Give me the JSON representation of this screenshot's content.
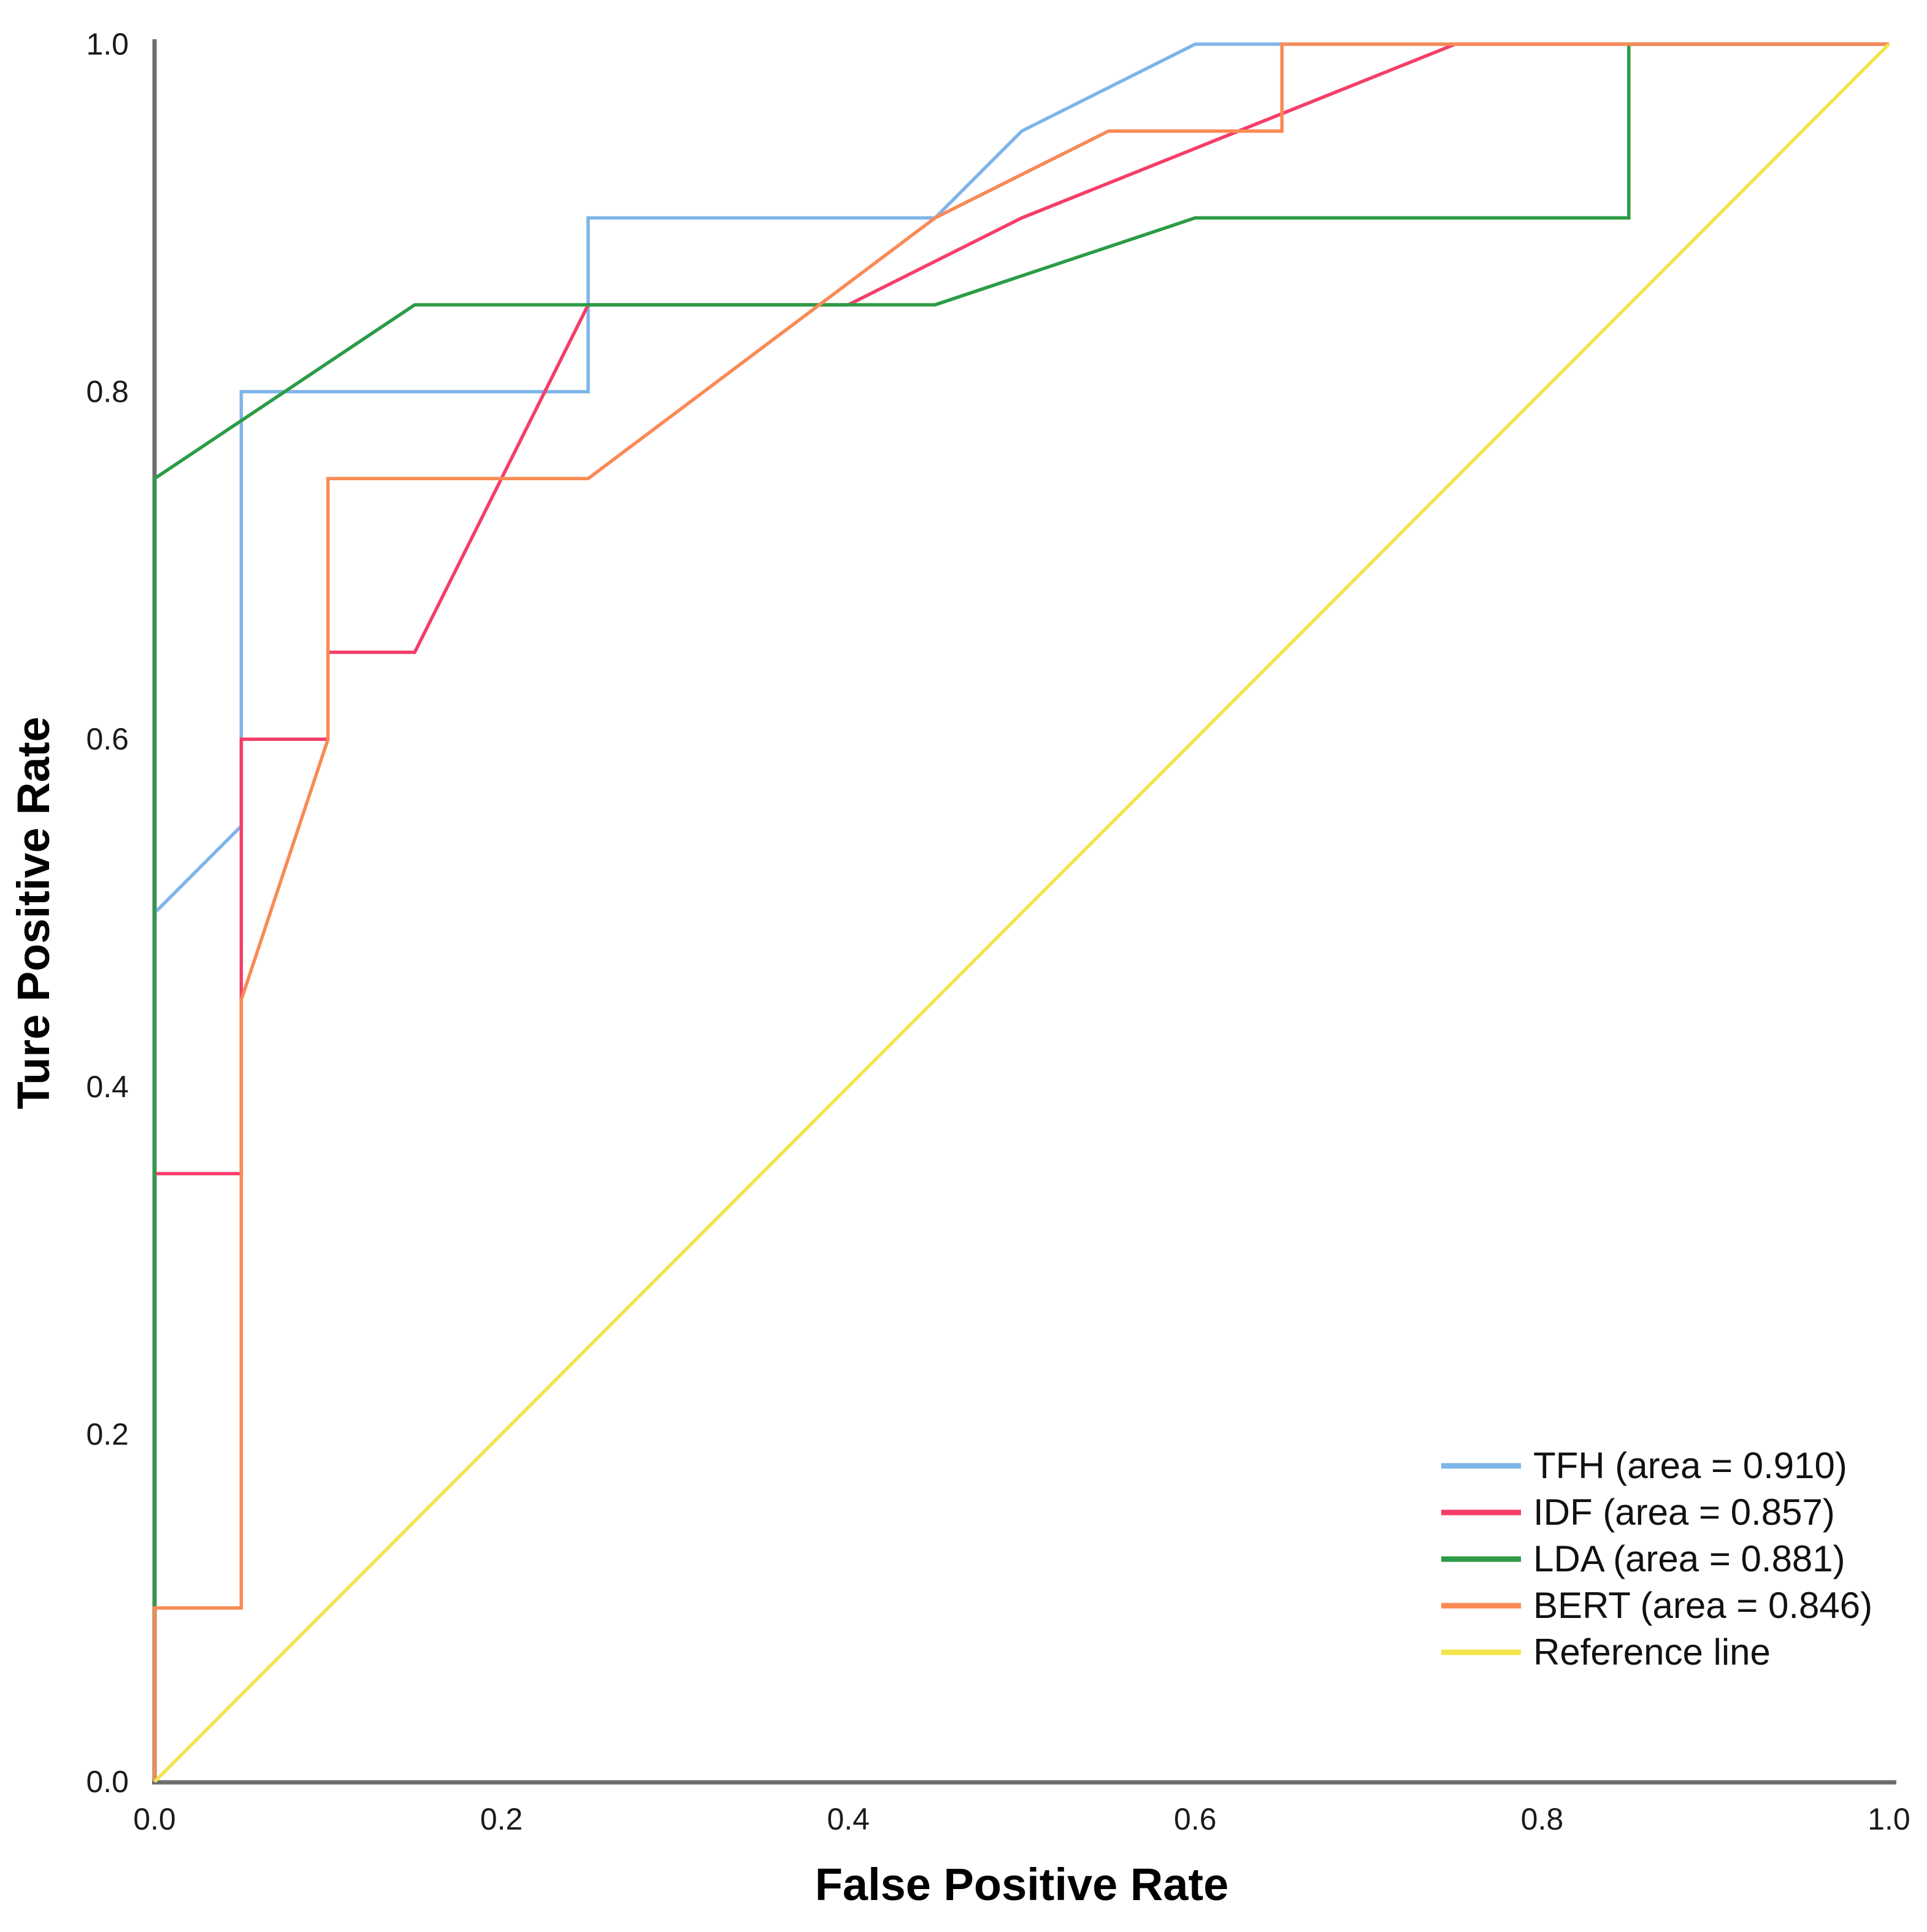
{
  "figure": {
    "background": "#ffffff",
    "axis_color": "#6e6e6e"
  },
  "axes": {
    "x": {
      "label": "False Positive Rate",
      "ticks": [
        "0.0",
        "0.2",
        "0.4",
        "0.6",
        "0.8",
        "1.0"
      ],
      "range": [
        0,
        1
      ]
    },
    "y": {
      "label": "Ture Positive Rate",
      "ticks": [
        "0.0",
        "0.2",
        "0.4",
        "0.6",
        "0.8",
        "1.0"
      ],
      "range": [
        0,
        1
      ]
    }
  },
  "legend": {
    "position": "inside lower right",
    "items": [
      {
        "label": "TFH (area = 0.910)",
        "color": "#7FB5E8"
      },
      {
        "label": "IDF (area = 0.857)",
        "color": "#F43E68"
      },
      {
        "label": "LDA (area = 0.881)",
        "color": "#2D9B45"
      },
      {
        "label": "BERT (area = 0.846)",
        "color": "#FA8A55"
      },
      {
        "label": "Reference line",
        "color": "#F3E44C"
      }
    ]
  },
  "chart_data": {
    "type": "line",
    "title": "",
    "xlabel": "False Positive Rate",
    "ylabel": "Ture Positive Rate",
    "xlim": [
      0,
      1
    ],
    "ylim": [
      0,
      1
    ],
    "grid": false,
    "legend_position": "inside lower right",
    "series": [
      {
        "name": "TFH",
        "area": 0.91,
        "color": "#7FB5E8",
        "points": [
          [
            0,
            0
          ],
          [
            0,
            0.5
          ],
          [
            0.05,
            0.55
          ],
          [
            0.05,
            0.8
          ],
          [
            0.25,
            0.8
          ],
          [
            0.25,
            0.9
          ],
          [
            0.45,
            0.9
          ],
          [
            0.5,
            0.95
          ],
          [
            0.6,
            1.0
          ],
          [
            1.0,
            1.0
          ]
        ]
      },
      {
        "name": "IDF",
        "area": 0.857,
        "color": "#F43E68",
        "points": [
          [
            0,
            0
          ],
          [
            0,
            0.35
          ],
          [
            0.05,
            0.35
          ],
          [
            0.05,
            0.6
          ],
          [
            0.1,
            0.6
          ],
          [
            0.1,
            0.65
          ],
          [
            0.15,
            0.65
          ],
          [
            0.25,
            0.85
          ],
          [
            0.4,
            0.85
          ],
          [
            0.5,
            0.9
          ],
          [
            0.75,
            1.0
          ],
          [
            1.0,
            1.0
          ]
        ]
      },
      {
        "name": "LDA",
        "area": 0.881,
        "color": "#2D9B45",
        "points": [
          [
            0,
            0
          ],
          [
            0,
            0.75
          ],
          [
            0.15,
            0.85
          ],
          [
            0.45,
            0.85
          ],
          [
            0.6,
            0.9
          ],
          [
            0.85,
            0.9
          ],
          [
            0.85,
            1.0
          ],
          [
            1.0,
            1.0
          ]
        ]
      },
      {
        "name": "BERT",
        "area": 0.846,
        "color": "#FA8A55",
        "points": [
          [
            0,
            0
          ],
          [
            0,
            0.1
          ],
          [
            0.05,
            0.1
          ],
          [
            0.05,
            0.45
          ],
          [
            0.1,
            0.6
          ],
          [
            0.1,
            0.75
          ],
          [
            0.25,
            0.75
          ],
          [
            0.45,
            0.9
          ],
          [
            0.55,
            0.95
          ],
          [
            0.65,
            0.95
          ],
          [
            0.65,
            1.0
          ],
          [
            1.0,
            1.0
          ]
        ]
      },
      {
        "name": "Reference line",
        "area": null,
        "color": "#F3E44C",
        "points": [
          [
            0,
            0
          ],
          [
            1.0,
            1.0
          ]
        ]
      }
    ]
  }
}
